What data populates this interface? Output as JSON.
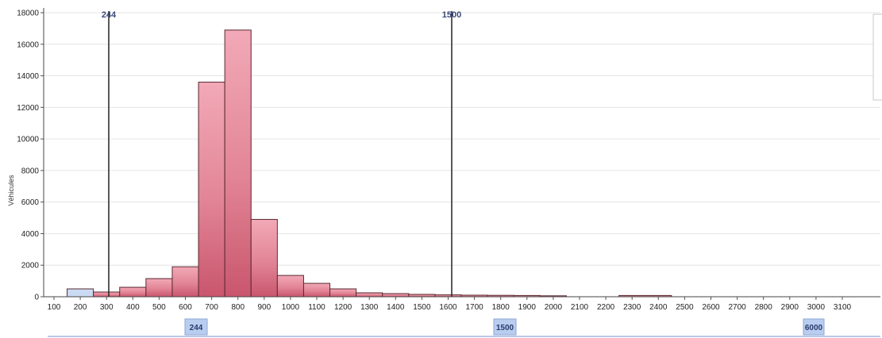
{
  "chart_data": {
    "type": "bar",
    "ylabel": "Véhicules",
    "ylim": [
      0,
      18000
    ],
    "yticks": [
      0,
      2000,
      4000,
      6000,
      8000,
      10000,
      12000,
      14000,
      16000,
      18000
    ],
    "xticks": [
      "100",
      "200",
      "300",
      "400",
      "500",
      "600",
      "700",
      "800",
      "900",
      "1000",
      "1100",
      "1200",
      "1300",
      "1400",
      "1500",
      "1600",
      "1700",
      "1800",
      "1900",
      "2000",
      "2100",
      "2200",
      "2300",
      "2400",
      "2500",
      "2600",
      "2700",
      "2800",
      "2900",
      "3000",
      "3100"
    ],
    "bins": [
      {
        "start": 150,
        "end": 250,
        "value": 500,
        "color": "#c9daf2"
      },
      {
        "start": 250,
        "end": 350,
        "value": 300
      },
      {
        "start": 350,
        "end": 450,
        "value": 600
      },
      {
        "start": 450,
        "end": 550,
        "value": 1150
      },
      {
        "start": 550,
        "end": 650,
        "value": 1900
      },
      {
        "start": 650,
        "end": 750,
        "value": 13600
      },
      {
        "start": 750,
        "end": 850,
        "value": 16900
      },
      {
        "start": 850,
        "end": 950,
        "value": 4900
      },
      {
        "start": 950,
        "end": 1050,
        "value": 1350
      },
      {
        "start": 1050,
        "end": 1150,
        "value": 850
      },
      {
        "start": 1150,
        "end": 1250,
        "value": 500
      },
      {
        "start": 1250,
        "end": 1350,
        "value": 250
      },
      {
        "start": 1350,
        "end": 1450,
        "value": 200
      },
      {
        "start": 1450,
        "end": 1550,
        "value": 150
      },
      {
        "start": 1550,
        "end": 1650,
        "value": 120
      },
      {
        "start": 1650,
        "end": 1750,
        "value": 100
      },
      {
        "start": 1750,
        "end": 1850,
        "value": 90
      },
      {
        "start": 1850,
        "end": 1950,
        "value": 80
      },
      {
        "start": 1950,
        "end": 2050,
        "value": 60
      },
      {
        "start": 2250,
        "end": 2450,
        "value": 80
      }
    ],
    "markers": [
      {
        "value": 244,
        "top_label": "244",
        "bottom_label": "244"
      },
      {
        "value": 1500,
        "top_label": "1500",
        "bottom_label": "1500"
      }
    ],
    "extra_badge": "6000",
    "grid": true,
    "bar_color": "#e1788d",
    "bar_edge": "#5a2a32"
  }
}
